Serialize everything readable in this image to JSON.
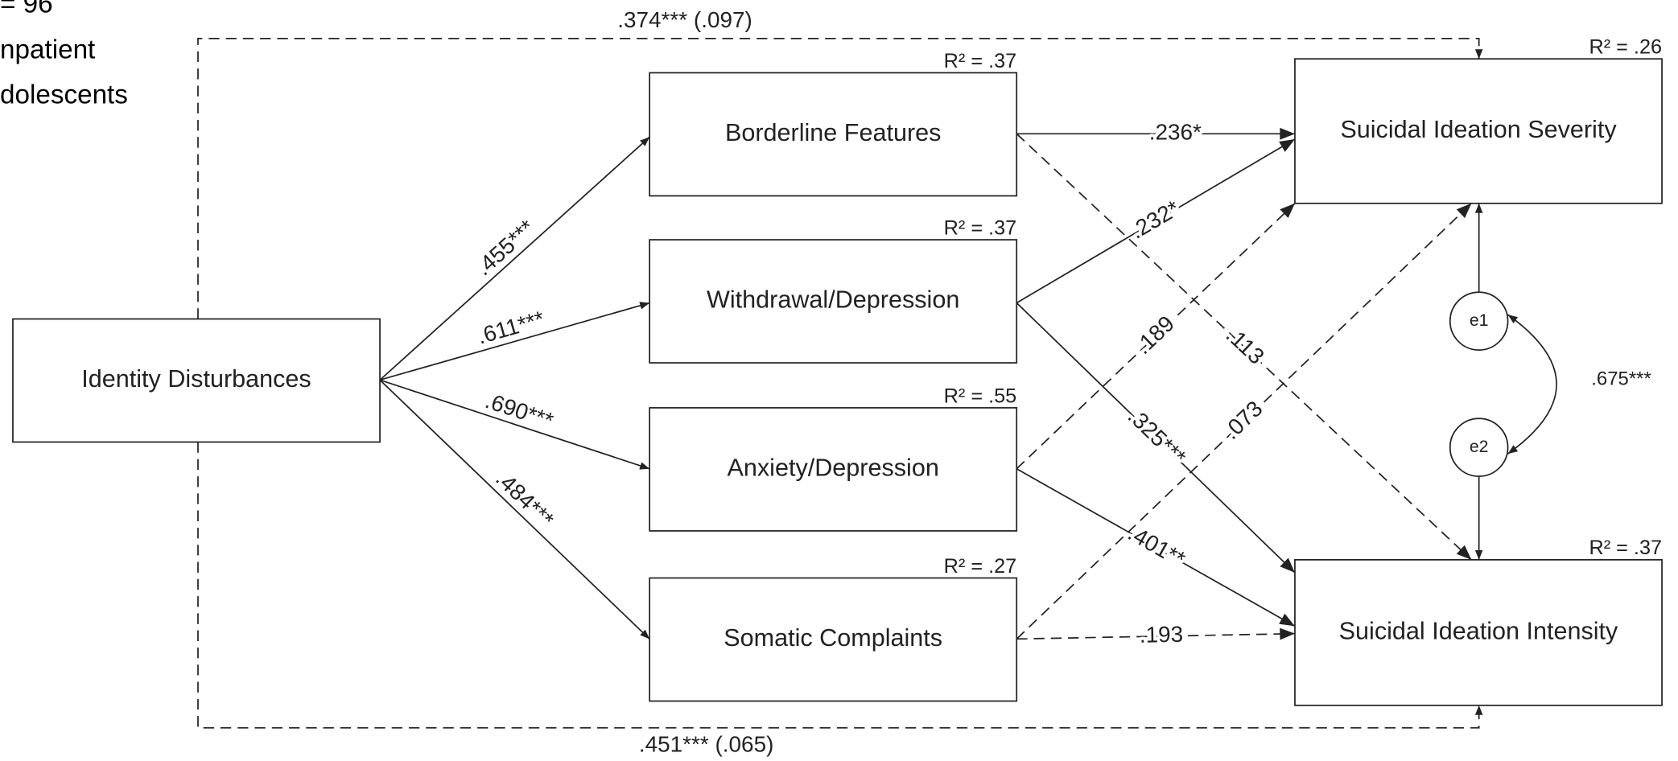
{
  "note": [
    "= 96",
    "npatient",
    "dolescents"
  ],
  "nodes": [
    {
      "label": "Identity Disturbances"
    },
    {
      "label": "Borderline Features",
      "r2": "R² = .37"
    },
    {
      "label": "Withdrawal/Depression",
      "r2": "R² = .37"
    },
    {
      "label": "Anxiety/Depression",
      "r2": "R² = .55"
    },
    {
      "label": "Somatic Complaints",
      "r2": "R² = .27"
    },
    {
      "label": "Suicidal Ideation Severity",
      "r2": "R² = .26"
    },
    {
      "label": "Suicidal Ideation Intensity",
      "r2": "R² = .37"
    },
    {
      "label": "e1"
    },
    {
      "label": "e2"
    }
  ],
  "edges": [
    {
      "label": ".455***",
      "dashed": false
    },
    {
      "label": ".611***",
      "dashed": false
    },
    {
      "label": ".690***",
      "dashed": false
    },
    {
      "label": ".484***",
      "dashed": false
    },
    {
      "label": ".236*",
      "dashed": false
    },
    {
      "label": ".232*",
      "dashed": false
    },
    {
      "label": ".113",
      "dashed": true
    },
    {
      "label": ".189",
      "dashed": true
    },
    {
      "label": ".325***",
      "dashed": false
    },
    {
      "label": ".073",
      "dashed": true
    },
    {
      "label": ".401**",
      "dashed": false
    },
    {
      "label": ".193",
      "dashed": true
    },
    {
      "label": ".374*** (.097)",
      "dashed": true
    },
    {
      "label": ".451*** (.065)",
      "dashed": true
    },
    {
      "label": ".675***",
      "dashed": false
    }
  ]
}
